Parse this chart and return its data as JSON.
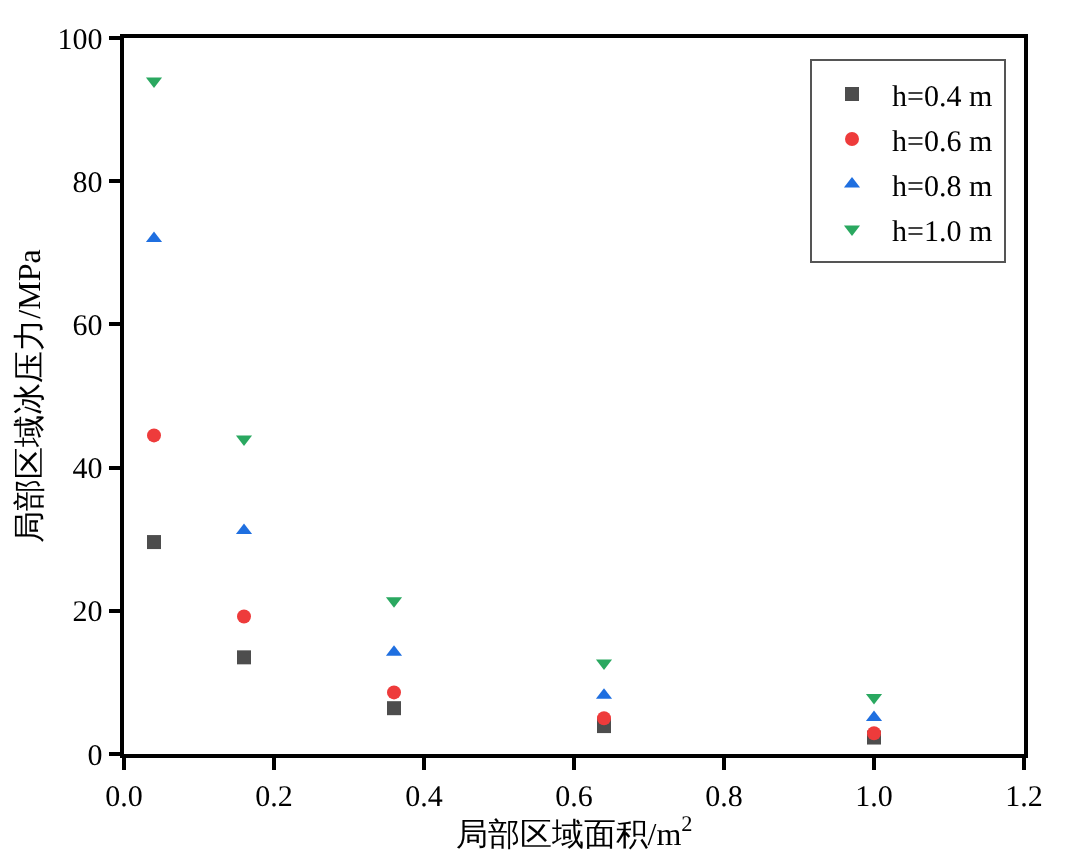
{
  "chart_data": {
    "type": "scatter",
    "xlabel": "局部区域面积/m$^{2}$",
    "ylabel": "局部区域冰压力/MPa",
    "x": [
      0.04,
      0.16,
      0.36,
      0.64,
      1.0
    ],
    "xlim": [
      0,
      1.2
    ],
    "xticks": [
      {
        "value": 0,
        "label": "0.0"
      },
      0.2,
      0.4,
      0.6,
      0.8,
      {
        "value": 1,
        "label": "1.0"
      },
      {
        "value": 1.2,
        "label": "1.2"
      }
    ],
    "ylim": [
      0,
      100
    ],
    "yticks": [
      0,
      20,
      40,
      60,
      80,
      100
    ],
    "legend": "top right",
    "series": [
      {
        "name": "h=0.4 m",
        "color": "#4d4d4d",
        "marker": "square",
        "values": [
          29.6,
          13.5,
          6.4,
          3.9,
          2.3
        ]
      },
      {
        "name": "h=0.6 m",
        "color": "#ee3b3b",
        "marker": "circle",
        "values": [
          44.5,
          19.2,
          8.6,
          5.0,
          2.9
        ]
      },
      {
        "name": "h=0.8 m",
        "color": "#1f6fe0",
        "marker": "triangle",
        "values": [
          72.0,
          31.2,
          14.2,
          8.2,
          5.1
        ]
      },
      {
        "name": "h=1.0 m",
        "color": "#2aa860",
        "marker": "triangle-down",
        "values": [
          94.0,
          44.0,
          21.4,
          12.7,
          7.9
        ]
      }
    ]
  }
}
